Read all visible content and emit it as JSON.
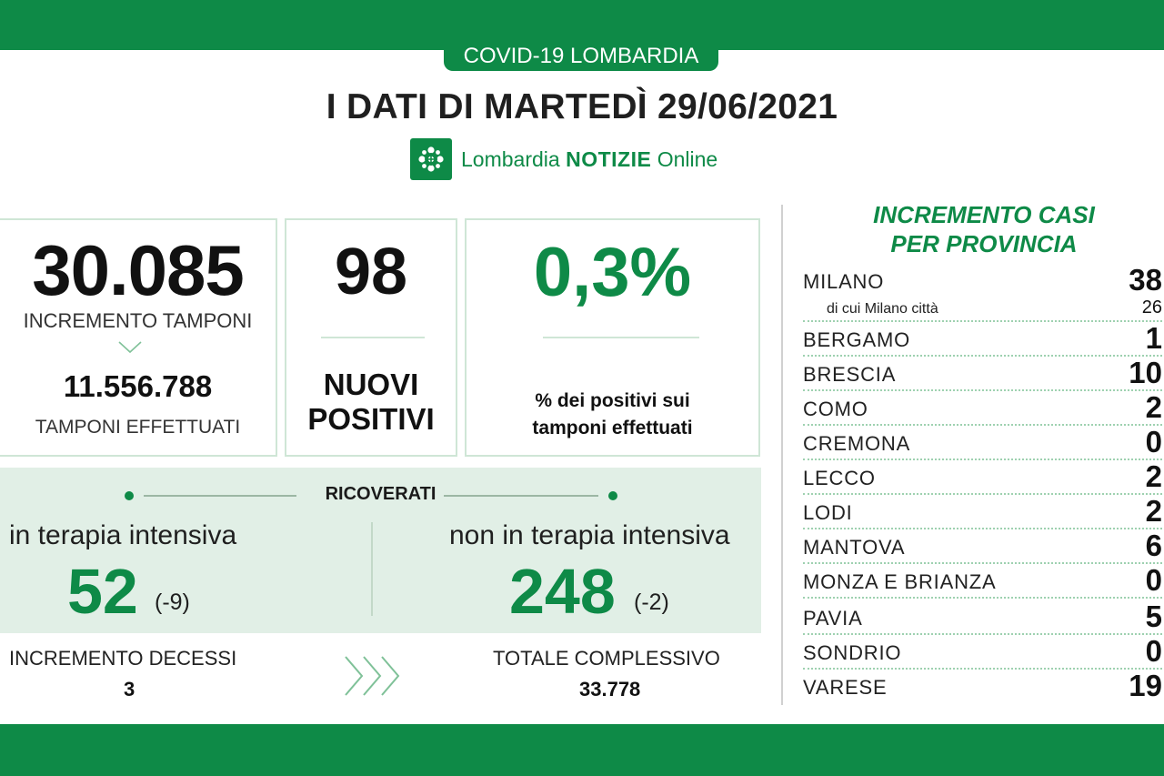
{
  "header": {
    "tag": "COVID-19 LOMBARDIA",
    "title": "I DATI DI MARTEDÌ 29/06/2021",
    "brand_name": "Lombardia",
    "brand_bold": "NOTIZIE",
    "brand_suffix": "Online",
    "brand_icon": "lombardia-rose-icon"
  },
  "tamponi": {
    "increment": "30.085",
    "increment_label": "INCREMENTO TAMPONI",
    "total": "11.556.788",
    "total_label": "TAMPONI EFFETTUATI"
  },
  "positivi": {
    "value": "98",
    "label_line1": "NUOVI",
    "label_line2": "POSITIVI"
  },
  "percentuale": {
    "value": "0,3%",
    "label_line1": "% dei positivi sui",
    "label_line2": "tamponi effettuati"
  },
  "ricoverati": {
    "title": "RICOVERATI",
    "intensiva_label": "in terapia intensiva",
    "intensiva_value": "52",
    "intensiva_delta": "(-9)",
    "non_intensiva_label": "non in terapia intensiva",
    "non_intensiva_value": "248",
    "non_intensiva_delta": "(-2)"
  },
  "decessi": {
    "increment_label": "INCREMENTO DECESSI",
    "increment_value": "3",
    "total_label": "TOTALE COMPLESSIVO",
    "total_value": "33.778"
  },
  "province": {
    "title_line1": "INCREMENTO CASI",
    "title_line2": "PER PROVINCIA",
    "rows": [
      {
        "name": "MILANO",
        "value": "38"
      },
      {
        "name": "di cui Milano città",
        "value": "26"
      },
      {
        "name": "BERGAMO",
        "value": "1"
      },
      {
        "name": "BRESCIA",
        "value": "10"
      },
      {
        "name": "COMO",
        "value": "2"
      },
      {
        "name": "CREMONA",
        "value": "0"
      },
      {
        "name": "LECCO",
        "value": "2"
      },
      {
        "name": "LODI",
        "value": "2"
      },
      {
        "name": "MANTOVA",
        "value": "6"
      },
      {
        "name": "MONZA E BRIANZA",
        "value": "0"
      },
      {
        "name": "PAVIA",
        "value": "5"
      },
      {
        "name": "SONDRIO",
        "value": "0"
      },
      {
        "name": "VARESE",
        "value": "19"
      }
    ]
  },
  "colors": {
    "brand_green": "#0e8a47",
    "panel_green": "#e1efe6"
  }
}
